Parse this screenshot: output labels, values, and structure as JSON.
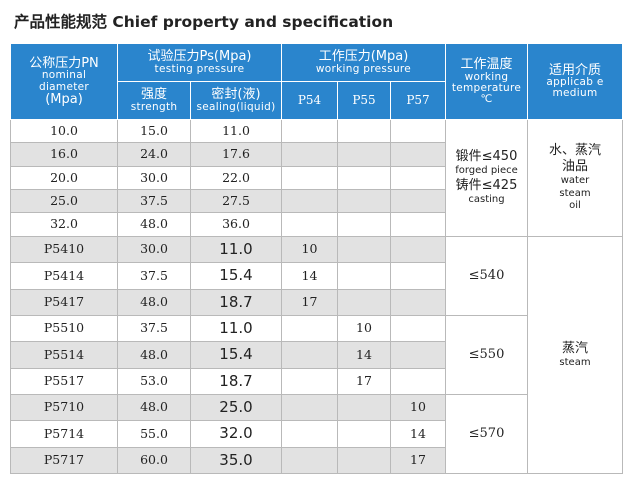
{
  "title": "产品性能规范 Chief property and specification",
  "headers": {
    "nominal": {
      "cn": "公称压力PN",
      "en1": "nominal",
      "en2": "diameter",
      "unit": "(Mpa)"
    },
    "test": {
      "cn": "试验压力Ps(Mpa)",
      "en": "testing pressure"
    },
    "strength": {
      "cn": "强度",
      "en": "strength"
    },
    "sealing": {
      "cn": "密封(液)",
      "en": "sealing(liquid)"
    },
    "working": {
      "cn": "工作压力(Mpa)",
      "en": "working pressure"
    },
    "p54": "P54",
    "p55": "P55",
    "p57": "P57",
    "temp": {
      "cn": "工作温度",
      "en1": "working",
      "en2": "temperature",
      "unit": "℃"
    },
    "medium": {
      "cn": "适用介质",
      "en1": "applicab e",
      "en2": "medium"
    }
  },
  "rows": [
    {
      "pn": "10.0",
      "strength": "15.0",
      "sealing": "11.0",
      "p54": "",
      "p55": "",
      "p57": ""
    },
    {
      "pn": "16.0",
      "strength": "24.0",
      "sealing": "17.6",
      "p54": "",
      "p55": "",
      "p57": ""
    },
    {
      "pn": "20.0",
      "strength": "30.0",
      "sealing": "22.0",
      "p54": "",
      "p55": "",
      "p57": ""
    },
    {
      "pn": "25.0",
      "strength": "37.5",
      "sealing": "27.5",
      "p54": "",
      "p55": "",
      "p57": ""
    },
    {
      "pn": "32.0",
      "strength": "48.0",
      "sealing": "36.0",
      "p54": "",
      "p55": "",
      "p57": ""
    },
    {
      "pn": "P5410",
      "strength": "30.0",
      "sealing": "11.0",
      "p54": "10",
      "p55": "",
      "p57": ""
    },
    {
      "pn": "P5414",
      "strength": "37.5",
      "sealing": "15.4",
      "p54": "14",
      "p55": "",
      "p57": ""
    },
    {
      "pn": "P5417",
      "strength": "48.0",
      "sealing": "18.7",
      "p54": "17",
      "p55": "",
      "p57": ""
    },
    {
      "pn": "P5510",
      "strength": "37.5",
      "sealing": "11.0",
      "p54": "",
      "p55": "10",
      "p57": ""
    },
    {
      "pn": "P5514",
      "strength": "48.0",
      "sealing": "15.4",
      "p54": "",
      "p55": "14",
      "p57": ""
    },
    {
      "pn": "P5517",
      "strength": "53.0",
      "sealing": "18.7",
      "p54": "",
      "p55": "17",
      "p57": ""
    },
    {
      "pn": "P5710",
      "strength": "48.0",
      "sealing": "25.0",
      "p54": "",
      "p55": "",
      "p57": "10"
    },
    {
      "pn": "P5714",
      "strength": "55.0",
      "sealing": "32.0",
      "p54": "",
      "p55": "",
      "p57": "14"
    },
    {
      "pn": "P5717",
      "strength": "60.0",
      "sealing": "35.0",
      "p54": "",
      "p55": "",
      "p57": "17"
    }
  ],
  "temperature": {
    "group1": {
      "forged": "锻件≤450",
      "forged_en": "forged piece",
      "cast": "铸件≤425",
      "cast_en": "casting"
    },
    "group2": "≤540",
    "group3": "≤550",
    "group4": "≤570"
  },
  "medium": {
    "group1": {
      "cn1": "水、蒸汽",
      "cn2": "油品",
      "en1": "water",
      "en2": "steam",
      "en3": "oil"
    },
    "group2": {
      "cn": "蒸汽",
      "en": "steam"
    }
  }
}
